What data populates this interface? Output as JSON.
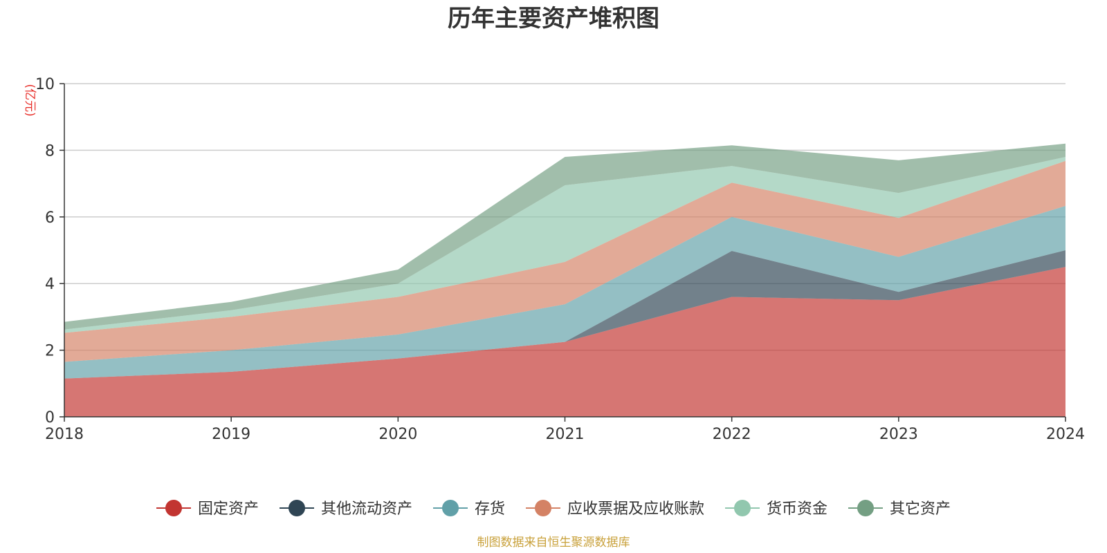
{
  "chart_data": {
    "type": "area",
    "stacked": true,
    "title": "历年主要资产堆积图",
    "y_unit_label": "(亿元)",
    "x": [
      "2018",
      "2019",
      "2020",
      "2021",
      "2022",
      "2023",
      "2024"
    ],
    "ylim": [
      0,
      10
    ],
    "yticks": [
      "0",
      "2",
      "4",
      "6",
      "8",
      "10"
    ],
    "grid": true,
    "legend_position": "bottom",
    "series": [
      {
        "name": "固定资产",
        "color": "#c23531",
        "values": [
          1.15,
          1.35,
          1.75,
          2.25,
          3.6,
          3.5,
          4.5
        ]
      },
      {
        "name": "其他流动资产",
        "color": "#2f4554",
        "values": [
          0.0,
          0.0,
          0.0,
          0.0,
          1.38,
          0.25,
          0.5
        ]
      },
      {
        "name": "存货",
        "color": "#61a0a8",
        "values": [
          0.5,
          0.65,
          0.72,
          1.13,
          1.02,
          1.05,
          1.33
        ]
      },
      {
        "name": "应收票据及应收账款",
        "color": "#d48265",
        "values": [
          0.87,
          1.0,
          1.13,
          1.27,
          1.03,
          1.17,
          1.35
        ]
      },
      {
        "name": "货币资金",
        "color": "#91c7ae",
        "values": [
          0.1,
          0.2,
          0.4,
          2.3,
          0.5,
          0.75,
          0.12
        ]
      },
      {
        "name": "其它资产",
        "color": "#749f83",
        "values": [
          0.23,
          0.25,
          0.42,
          0.85,
          0.62,
          0.98,
          0.4
        ]
      }
    ],
    "source_note": "制图数据来自恒生聚源数据库"
  }
}
